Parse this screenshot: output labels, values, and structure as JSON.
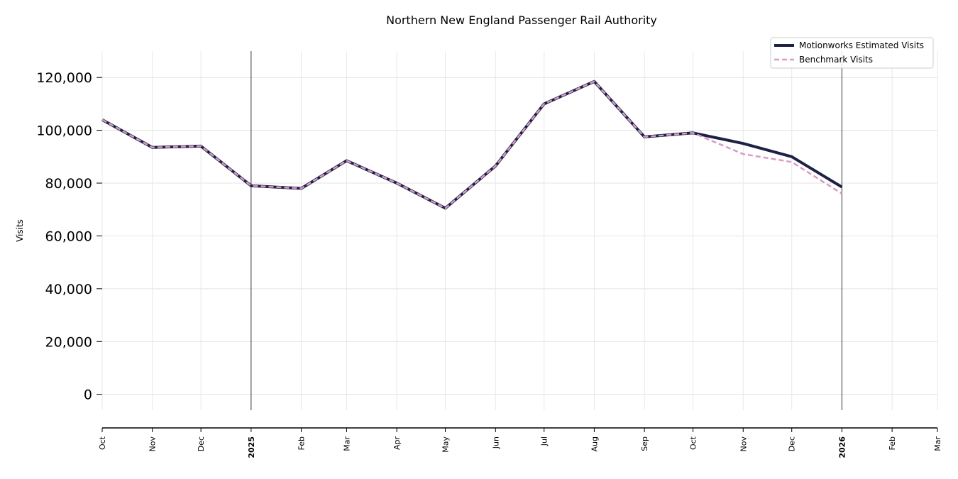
{
  "chart_data": {
    "type": "line",
    "title": "Northern New England Passenger Rail Authority",
    "ylabel": "Visits",
    "xlabel": "",
    "ylim": [
      -6000,
      130000
    ],
    "yticks": [
      0,
      20000,
      40000,
      60000,
      80000,
      100000,
      120000
    ],
    "ytick_labels": [
      "0",
      "20,000",
      "40,000",
      "60,000",
      "80,000",
      "100,000",
      "120,000"
    ],
    "x_labels": [
      "Oct",
      "Nov",
      "Dec",
      "2025",
      "Feb",
      "Mar",
      "Apr",
      "May",
      "Jun",
      "Jul",
      "Aug",
      "Sep",
      "Oct",
      "Nov",
      "Dec",
      "2026",
      "Feb",
      "Mar"
    ],
    "x_dates": [
      "2024-10-01",
      "2024-11-01",
      "2024-12-01",
      "2025-01-01",
      "2025-02-01",
      "2025-03-01",
      "2025-04-01",
      "2025-05-01",
      "2025-06-01",
      "2025-07-01",
      "2025-08-01",
      "2025-09-01",
      "2025-10-01",
      "2025-11-01",
      "2025-12-01",
      "2026-01-01",
      "2026-02-01",
      "2026-03-01"
    ],
    "year_markers": [
      "2025-01-01",
      "2026-01-01"
    ],
    "grid": true,
    "legend_position": "top-right",
    "series": [
      {
        "name": "Motionworks Estimated Visits",
        "color": "#1c2145",
        "style": "solid",
        "x": [
          "2024-10-01",
          "2024-11-01",
          "2024-12-01",
          "2025-01-01",
          "2025-02-01",
          "2025-03-01",
          "2025-04-01",
          "2025-05-01",
          "2025-06-01",
          "2025-07-01",
          "2025-08-01",
          "2025-09-01",
          "2025-10-01",
          "2025-11-01",
          "2025-12-01",
          "2026-01-01"
        ],
        "values": [
          104000,
          93500,
          94000,
          79000,
          78000,
          88500,
          80000,
          70500,
          86500,
          110000,
          118500,
          97500,
          99000,
          95000,
          90000,
          78500
        ]
      },
      {
        "name": "Benchmark Visits",
        "color": "#d89bc4",
        "style": "dashed",
        "x": [
          "2024-10-01",
          "2024-11-01",
          "2024-12-01",
          "2025-01-01",
          "2025-02-01",
          "2025-03-01",
          "2025-04-01",
          "2025-05-01",
          "2025-06-01",
          "2025-07-01",
          "2025-08-01",
          "2025-09-01",
          "2025-10-01",
          "2025-11-01",
          "2025-12-01",
          "2026-01-01"
        ],
        "values": [
          104000,
          93500,
          94000,
          79000,
          78000,
          88500,
          80000,
          70500,
          86500,
          110000,
          118500,
          97500,
          99000,
          91000,
          88000,
          76000
        ]
      }
    ]
  }
}
